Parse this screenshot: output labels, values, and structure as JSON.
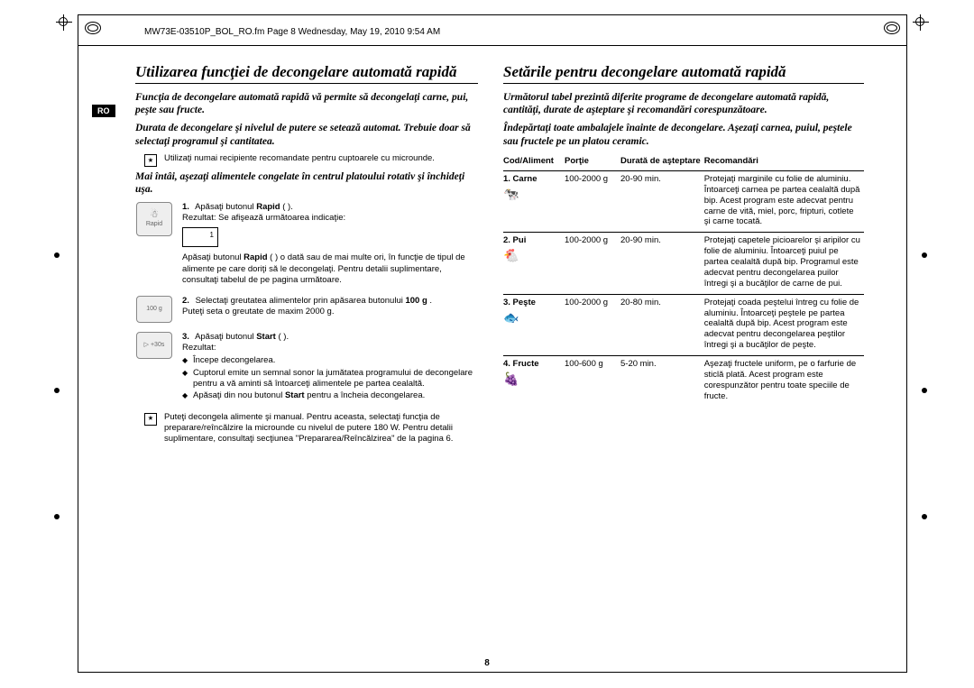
{
  "meta": {
    "header": "MW73E-03510P_BOL_RO.fm  Page 8  Wednesday, May 19, 2010  9:54 AM",
    "lang_badge": "RO",
    "page_number": "8"
  },
  "left": {
    "title": "Utilizarea funcţiei de decongelare automată rapidă",
    "p1": "Funcţia de decongelare automată rapidă vă permite să decongelaţi carne, pui, peşte sau fructe.",
    "p2": "Durata de decongelare şi nivelul de putere se setează automat. Trebuie doar să selectaţi programul şi cantitatea.",
    "note_top": "Utilizaţi numai recipiente recomandate pentru cuptoarele cu microunde.",
    "p3": "Mai întâi, aşezaţi alimentele congelate în centrul platoului rotativ şi închideţi uşa.",
    "step1_btn": "Rapid",
    "step1_text_a": "Apăsaţi butonul ",
    "step1_text_b": "Rapid",
    "step1_text_c": " ( ).",
    "step1_result_label": "Rezultat:   Se afişează următoarea indicaţie:",
    "step1_text_d": "Apăsaţi butonul ",
    "step1_text_e": "Rapid",
    "step1_text_f": " ( ) o dată sau de mai multe ori, în funcţie de tipul de alimente pe care doriţi să le decongelaţi. Pentru detalii suplimentare, consultaţi tabelul de pe pagina următoare.",
    "step2_btn": "100 g",
    "step2_text_a": "Selectaţi greutatea alimentelor prin apăsarea butonului ",
    "step2_text_b": "100 g",
    "step2_text_c": ".",
    "step2_text_d": "Puteţi seta o greutate de maxim 2000 g.",
    "step3_btn": "▷ +30s",
    "step3_text_a": "Apăsaţi butonul ",
    "step3_text_b": "Start",
    "step3_text_c": " ( ).",
    "step3_result_label": "Rezultat:",
    "step3_bullets": [
      "Începe decongelarea.",
      "Cuptorul emite un semnal sonor la jumătatea programului de decongelare pentru a vă aminti să întoarceţi alimentele pe partea cealaltă.",
      "Apăsaţi din nou butonul Start pentru a încheia decongelarea."
    ],
    "note_bottom": "Puteţi decongela alimente şi manual. Pentru aceasta, selectaţi funcţia de preparare/reîncălzire la microunde cu nivelul de putere 180 W. Pentru detalii suplimentare, consultaţi secţiunea \"Prepararea/Reîncălzirea\" de la pagina 6."
  },
  "right": {
    "title": "Setările pentru decongelare automată rapidă",
    "p1": "Următorul tabel prezintă diferite programe de decongelare automată rapidă, cantităţi, durate de aşteptare şi recomandări corespunzătoare.",
    "p2": "Îndepărtaţi toate ambalajele înainte de decongelare. Aşezaţi carnea, puiul, peştele sau fructele pe un platou ceramic.",
    "headers": {
      "c1": "Cod/Aliment",
      "c2": "Porţie",
      "c3": "Durată de aşteptare",
      "c4": "Recomandări"
    },
    "rows": [
      {
        "code": "1. Carne",
        "icon": "🐄",
        "portion": "100-2000 g",
        "wait": "20-90 min.",
        "rec": "Protejaţi marginile cu folie de aluminiu. Întoarceţi carnea pe partea cealaltă după bip.\nAcest program este adecvat pentru carne de vită, miel, porc, fripturi, cotlete şi carne tocată."
      },
      {
        "code": "2. Pui",
        "icon": "🐔",
        "portion": "100-2000 g",
        "wait": "20-90 min.",
        "rec": "Protejaţi capetele picioarelor şi aripilor cu folie de aluminiu. Întoarceţi puiul pe partea cealaltă după bip. Programul este adecvat pentru decongelarea puilor întregi şi a bucăţilor de carne de pui."
      },
      {
        "code": "3. Peşte",
        "icon": "🐟",
        "portion": "100-2000 g",
        "wait": "20-80 min.",
        "rec": "Protejaţi coada peştelui întreg cu folie de aluminiu. Întoarceţi peştele pe partea cealaltă după bip. Acest program este adecvat pentru decongelarea peştilor întregi şi a bucăţilor de peşte."
      },
      {
        "code": "4. Fructe",
        "icon": "🍇",
        "portion": "100-600 g",
        "wait": "5-20 min.",
        "rec": "Aşezaţi fructele uniform, pe o farfurie de sticlă plată.\nAcest program este corespunzător pentru toate speciile de fructe."
      }
    ]
  }
}
